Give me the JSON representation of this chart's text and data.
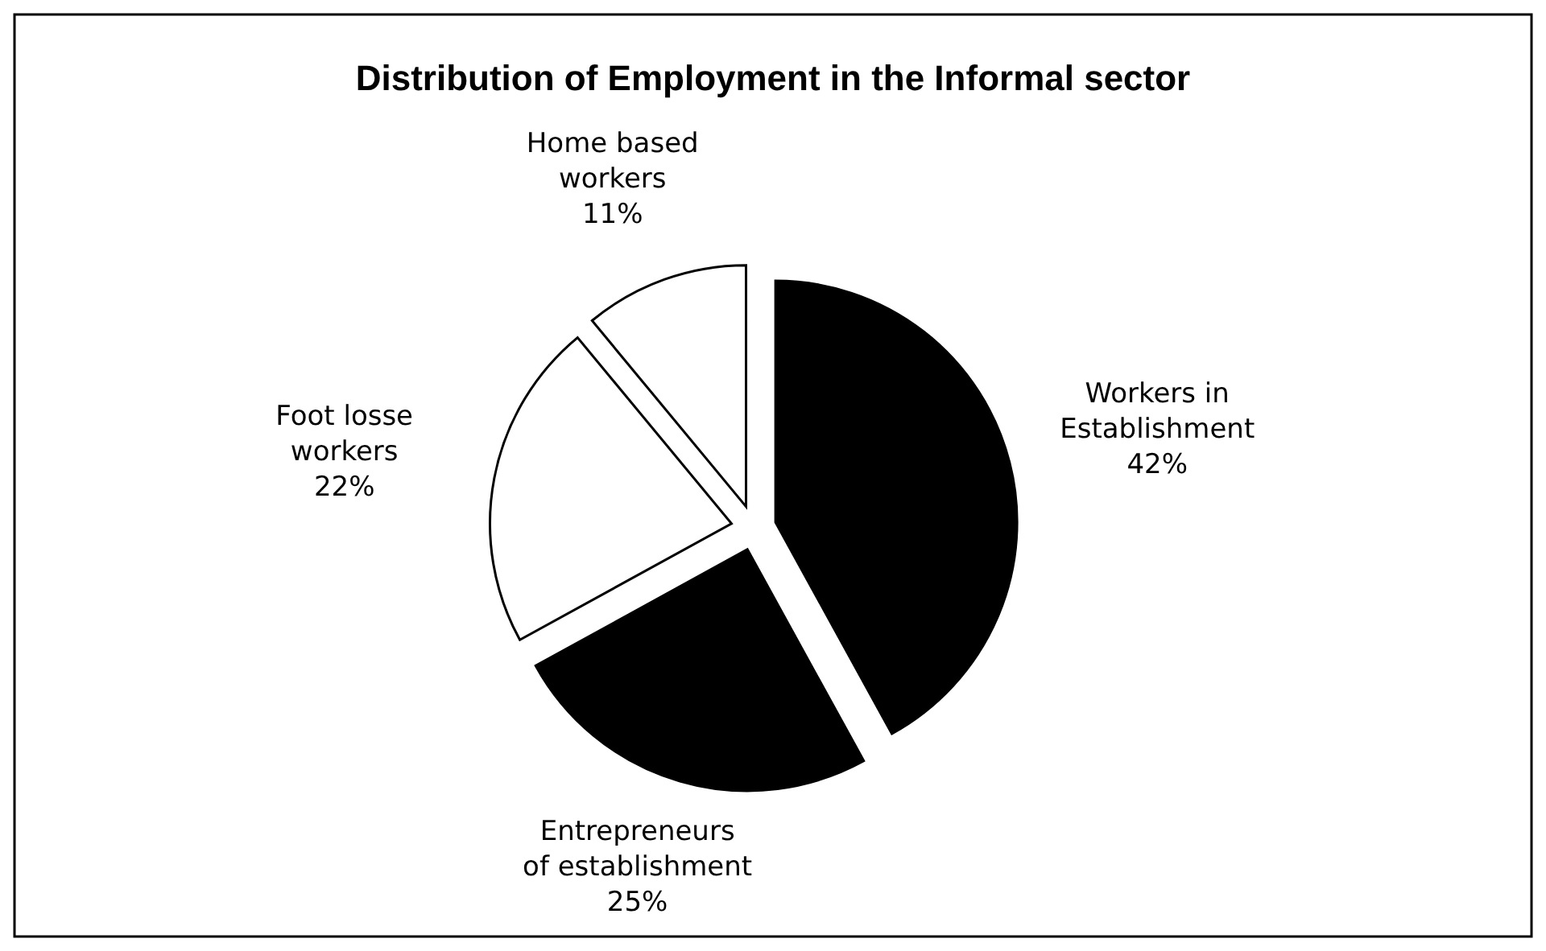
{
  "chart_data": {
    "type": "pie",
    "title": "Distribution of Employment in the Informal sector",
    "categories": [
      "Workers in\nEstablishment",
      "Entrepreneurs\nof establishment",
      "Foot losse\nworkers",
      "Home based\nworkers"
    ],
    "values": [
      42,
      25,
      22,
      11
    ],
    "colors": [
      "#000000",
      "#000000",
      "#ffffff",
      "#ffffff"
    ],
    "value_labels": [
      "42%",
      "25%",
      "22%",
      "11%"
    ]
  }
}
